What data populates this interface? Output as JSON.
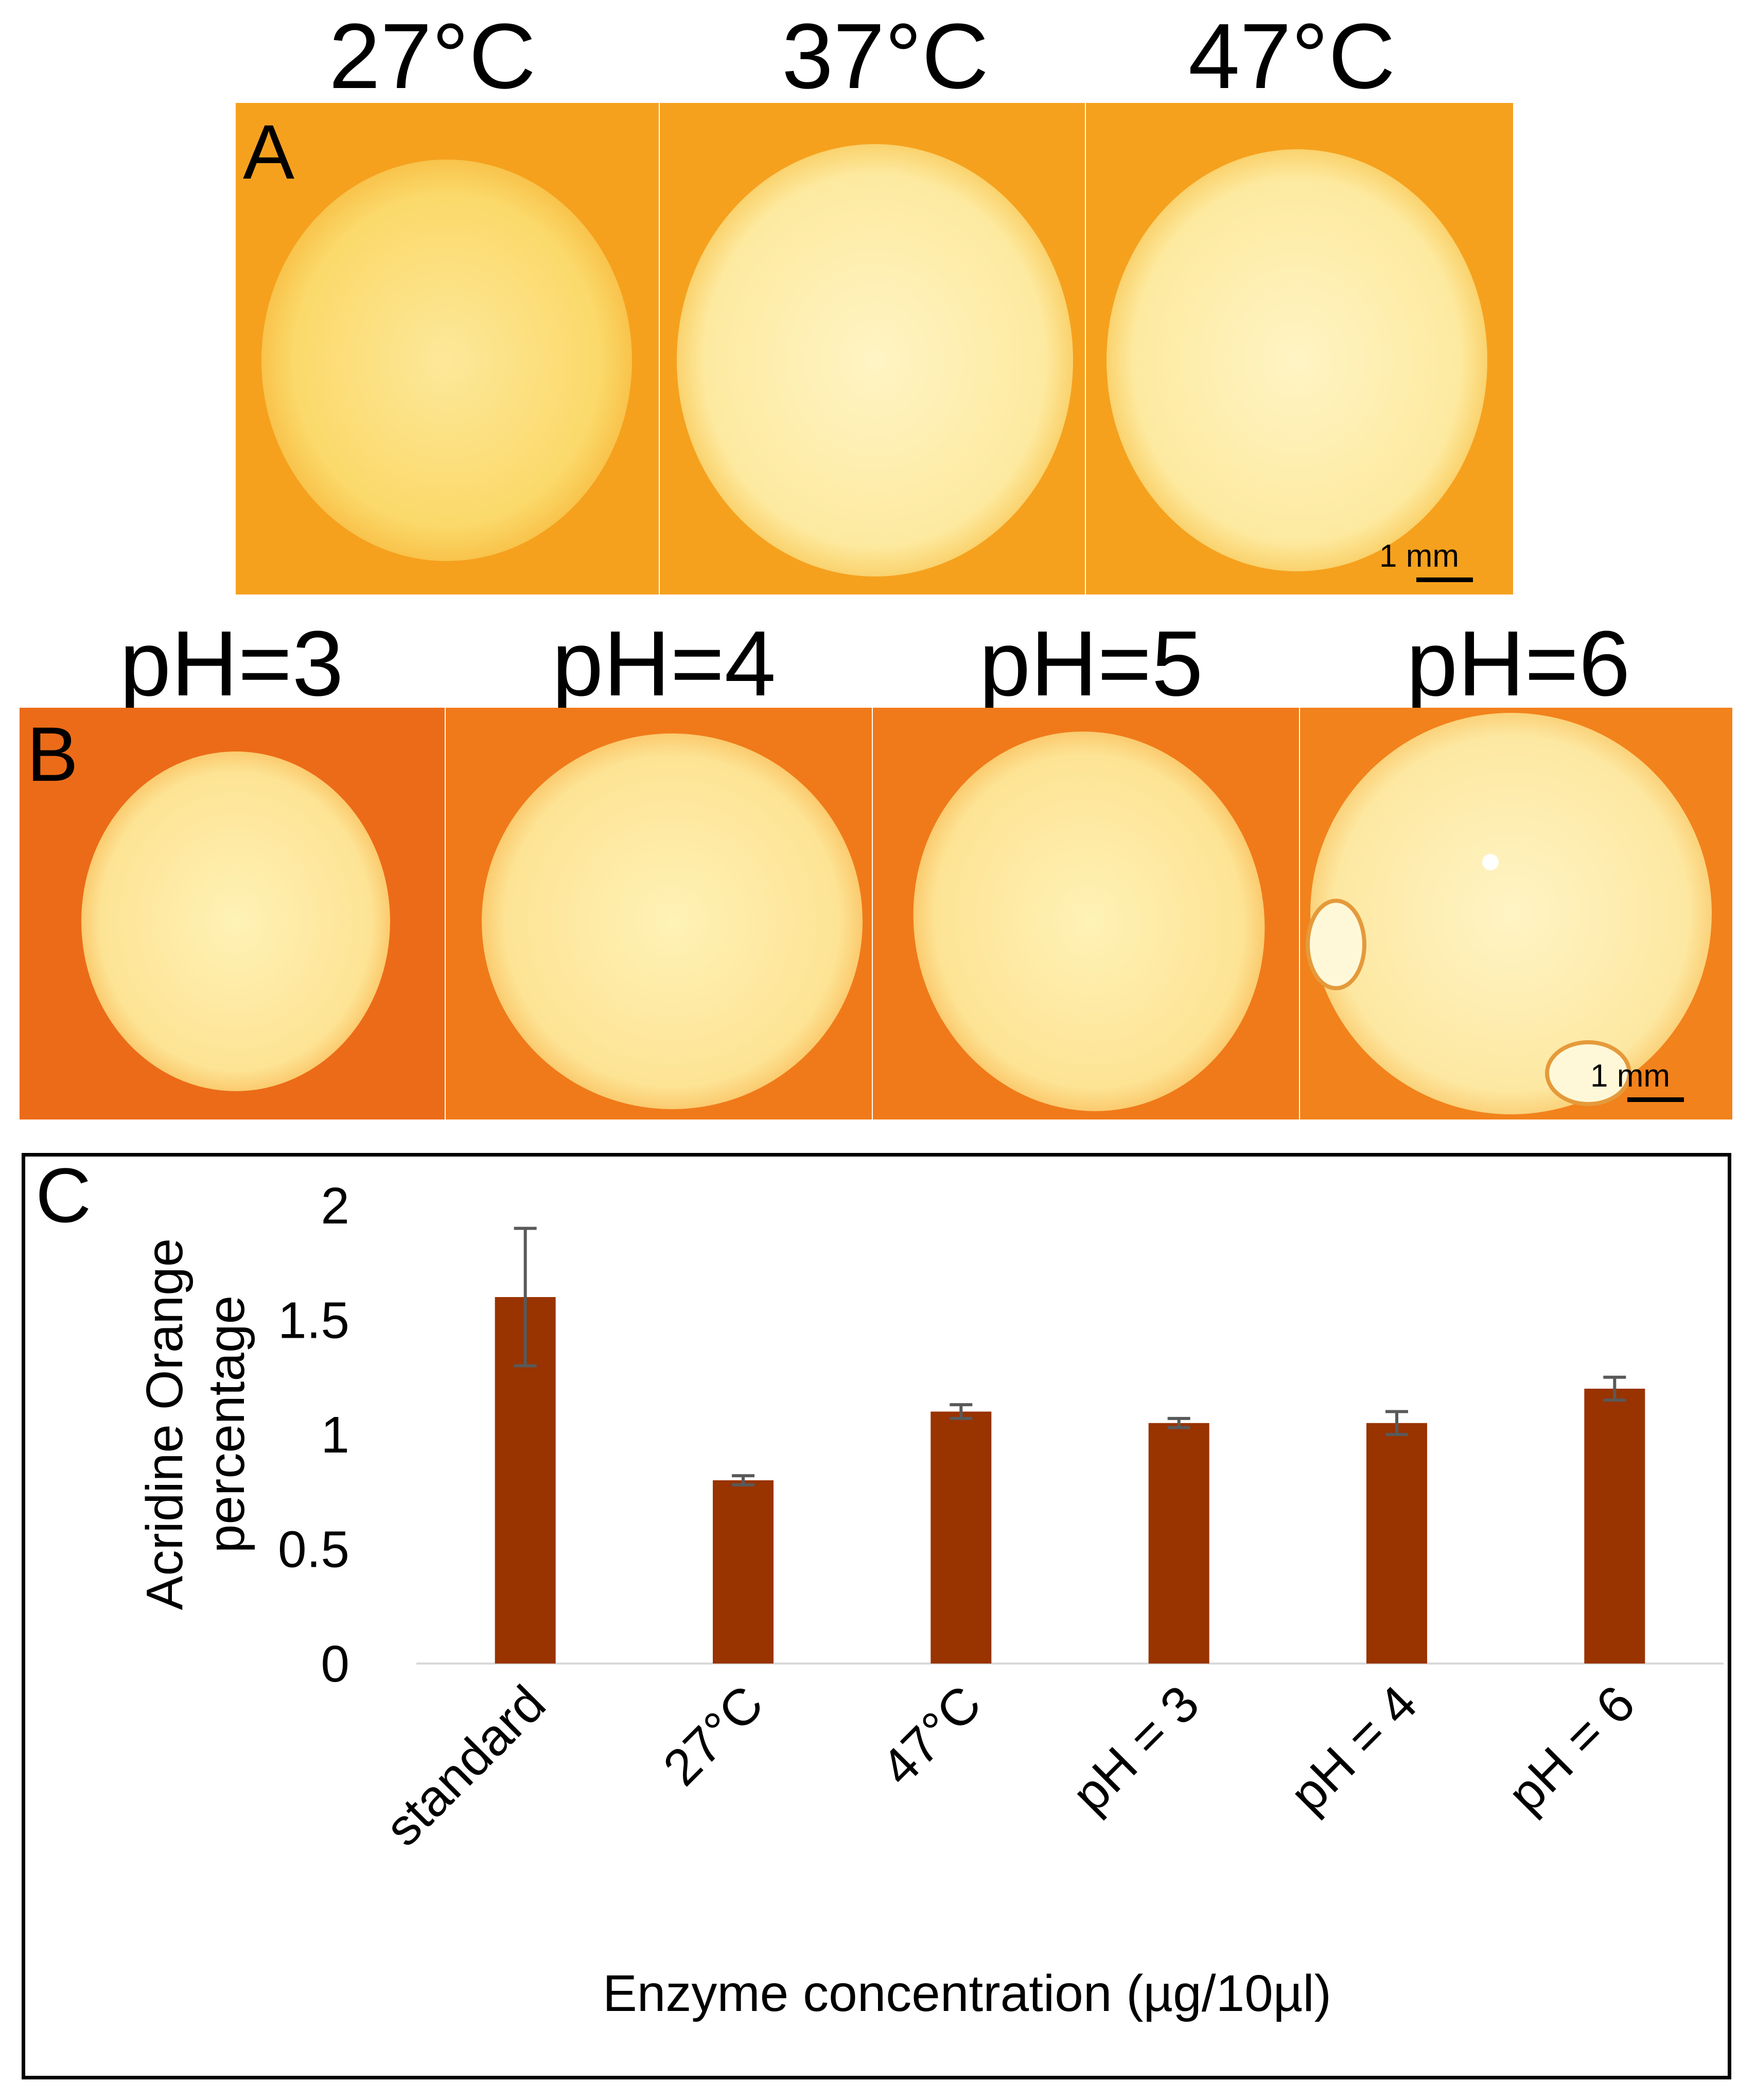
{
  "panel_a": {
    "letter": "A",
    "labels": [
      "27°C",
      "37°C",
      "47°C"
    ],
    "scale_bar": "1 mm"
  },
  "panel_b": {
    "letter": "B",
    "labels": [
      "pH=3",
      "pH=4",
      "pH=5",
      "pH=6"
    ],
    "scale_bar": "1 mm"
  },
  "panel_c": {
    "letter": "C"
  },
  "colors": {
    "bar": "#993300",
    "error_bar": "#595959",
    "plate_bg_a": "#f5a11e",
    "plate_bg_b": "#f07a1a",
    "zone": "#fff3b8"
  },
  "chart_data": {
    "type": "bar",
    "title": "",
    "xlabel": "Enzyme concentration (µg/10µl)",
    "ylabel": "Acridine Orange percentage",
    "ylabel_lines": [
      "Acridine Orange",
      "percentage"
    ],
    "categories": [
      "standard",
      "27°C",
      "47°C",
      "pH = 3",
      "pH = 4",
      "pH = 6"
    ],
    "values": [
      1.6,
      0.8,
      1.1,
      1.05,
      1.05,
      1.2
    ],
    "errors": [
      0.3,
      0.02,
      0.03,
      0.02,
      0.05,
      0.05
    ],
    "ylim": [
      0,
      2
    ],
    "yticks": [
      0,
      0.5,
      1,
      1.5,
      2
    ],
    "ytick_labels": [
      "0",
      "0.5",
      "1",
      "1.5",
      "2"
    ],
    "grid": false,
    "legend": "none"
  }
}
